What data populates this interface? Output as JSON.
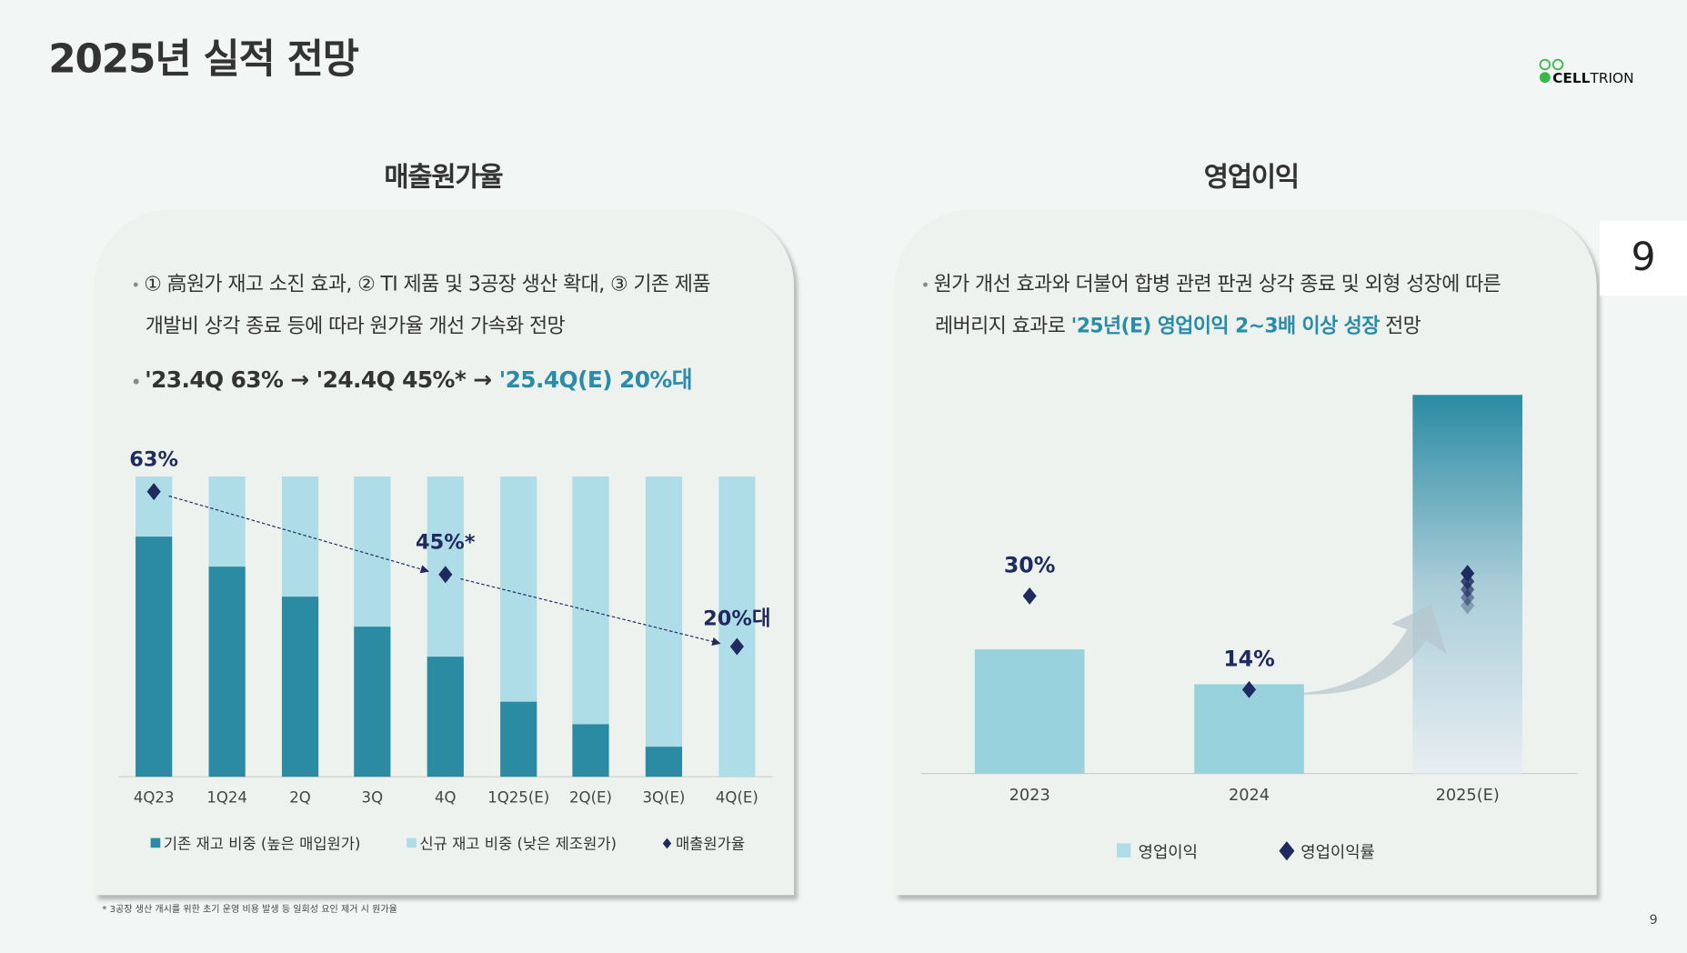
{
  "header": {
    "title": "2025년 실적 전망",
    "logo_text": "CELLTRION",
    "page_tab": "9",
    "page_number": "9"
  },
  "colors": {
    "dark_teal": "#2a8ba3",
    "light_teal": "#aedce7",
    "navy": "#1f2a5e",
    "highlight": "#2a8ca8",
    "bar_2023_2024": "#97d2dd"
  },
  "left": {
    "section_title": "매출원가율",
    "bullet1_line1": "① 高원가 재고 소진 효과, ② TI 제품 및 3공장 생산 확대, ③ 기존 제품",
    "bullet1_line2": "개발비 상각 종료 등에 따라 원가율 개선 가속화 전망",
    "bullet2_plain": "'23.4Q 63% → '24.4Q 45%* → ",
    "bullet2_highlight": "'25.4Q(E) 20%대",
    "footnote": "* 3공장 생산 개시를 위한 초기 운영 비용 발생 등 일회성 요인 제거 시 원가율"
  },
  "right": {
    "section_title": "영업이익",
    "bullet1_line1": "원가 개선 효과와 더불어  합병 관련 판권 상각 종료 및 외형 성장에 따른",
    "bullet1_line2_plain": "레버리지 효과로 ",
    "bullet1_line2_highlight": "'25년(E) 영업이익 2~3배 이상 성장",
    "bullet1_line2_end": " 전망"
  },
  "chart_data": [
    {
      "type": "bar",
      "stacked": true,
      "categories": [
        "4Q23",
        "1Q24",
        "2Q",
        "3Q",
        "4Q",
        "1Q25(E)",
        "2Q(E)",
        "3Q(E)",
        "4Q(E)"
      ],
      "series": [
        {
          "name": "기존 재고 비중 (높은 매입원가)",
          "values": [
            80,
            70,
            60,
            50,
            40,
            25,
            17.5,
            10,
            0
          ],
          "color": "#2a8ba3"
        },
        {
          "name": "신규 재고 비중 (낮은 제조원가)",
          "values": [
            20,
            30,
            40,
            50,
            60,
            75,
            82.5,
            90,
            100
          ],
          "color": "#aedce7"
        }
      ],
      "markers": {
        "name": "매출원가율",
        "points": [
          {
            "category": "4Q23",
            "value": 63,
            "label": "63%"
          },
          {
            "category": "4Q",
            "value": 45,
            "label": "45%*"
          },
          {
            "category": "4Q(E)",
            "value": 20,
            "label": "20%대"
          }
        ]
      },
      "unit": "%",
      "ylim": [
        0,
        100
      ],
      "grid": false,
      "legend": "bottom"
    },
    {
      "type": "bar",
      "categories": [
        "2023",
        "2024",
        "2025(E)"
      ],
      "series": [
        {
          "name": "영업이익",
          "values": [
            1.39,
            1.0,
            4.24
          ]
        }
      ],
      "markers": {
        "name": "영업이익률",
        "points": [
          {
            "category": "2023",
            "value": 30,
            "label": "30%"
          },
          {
            "category": "2024",
            "value": 14,
            "label": "14%"
          },
          {
            "category": "2025(E)",
            "value": null,
            "label": ""
          }
        ]
      },
      "value_note": "bar heights relative to 2024 (no axis printed)",
      "grid": false,
      "legend": "bottom"
    }
  ]
}
